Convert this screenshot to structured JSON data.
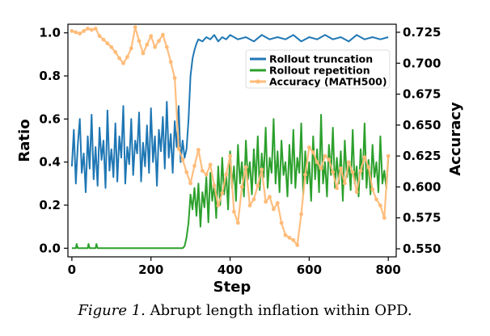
{
  "caption": {
    "figure_label": "Figure 1.",
    "text": "Abrupt length inflation within OPD."
  },
  "chart_data": {
    "type": "line",
    "title": "",
    "xlabel": "Step",
    "ylabel_left": "Ratio",
    "ylabel_right": "Accuracy",
    "xlim": [
      -10,
      820
    ],
    "ylim_left": [
      -0.04,
      1.04
    ],
    "ylim_right": [
      0.5435,
      0.7315
    ],
    "x_ticks": [
      0,
      200,
      400,
      600,
      800
    ],
    "x_tick_labels": [
      "0",
      "200",
      "400",
      "600",
      "800"
    ],
    "y_left_ticks": [
      0.0,
      0.2,
      0.4,
      0.6,
      0.8,
      1.0
    ],
    "y_left_tick_labels": [
      "0.0",
      "0.2",
      "0.4",
      "0.6",
      "0.8",
      "1.0"
    ],
    "y_right_ticks": [
      0.55,
      0.575,
      0.6,
      0.625,
      0.65,
      0.675,
      0.7,
      0.725
    ],
    "y_right_tick_labels": [
      "0.550",
      "0.575",
      "0.600",
      "0.625",
      "0.650",
      "0.675",
      "0.700",
      "0.725"
    ],
    "legend": {
      "placement": "upper-right",
      "entries": [
        "Rollout truncation",
        "Rollout repetition",
        "Accuracy (MATH500)"
      ]
    },
    "series": [
      {
        "name": "Rollout truncation",
        "axis": "left",
        "color": "#1f77b4",
        "x": [
          0,
          5,
          10,
          15,
          20,
          25,
          30,
          35,
          40,
          45,
          50,
          55,
          60,
          65,
          70,
          75,
          80,
          85,
          90,
          95,
          100,
          105,
          110,
          115,
          120,
          125,
          130,
          135,
          140,
          145,
          150,
          155,
          160,
          165,
          170,
          175,
          180,
          185,
          190,
          195,
          200,
          205,
          210,
          215,
          220,
          225,
          230,
          235,
          240,
          245,
          250,
          255,
          260,
          265,
          270,
          275,
          280,
          285,
          290,
          295,
          300,
          305,
          310,
          315,
          320,
          330,
          340,
          350,
          360,
          370,
          380,
          390,
          400,
          420,
          440,
          460,
          480,
          500,
          520,
          540,
          560,
          580,
          600,
          620,
          640,
          660,
          680,
          700,
          720,
          740,
          760,
          780,
          800
        ],
        "values": [
          0.38,
          0.55,
          0.3,
          0.48,
          0.6,
          0.35,
          0.44,
          0.26,
          0.52,
          0.37,
          0.62,
          0.32,
          0.47,
          0.29,
          0.56,
          0.41,
          0.5,
          0.28,
          0.64,
          0.36,
          0.46,
          0.33,
          0.58,
          0.31,
          0.52,
          0.42,
          0.66,
          0.3,
          0.47,
          0.39,
          0.6,
          0.34,
          0.5,
          0.44,
          0.63,
          0.31,
          0.49,
          0.38,
          0.57,
          0.35,
          0.65,
          0.4,
          0.52,
          0.29,
          0.55,
          0.45,
          0.61,
          0.37,
          0.68,
          0.42,
          0.53,
          0.35,
          0.59,
          0.47,
          0.66,
          0.4,
          0.5,
          0.42,
          0.46,
          0.6,
          0.8,
          0.88,
          0.92,
          0.95,
          0.97,
          0.96,
          0.98,
          0.97,
          0.99,
          0.96,
          0.98,
          0.97,
          0.99,
          0.97,
          0.98,
          0.96,
          0.99,
          0.97,
          0.98,
          0.97,
          0.99,
          0.96,
          0.98,
          0.97,
          0.99,
          0.97,
          0.98,
          0.96,
          0.99,
          0.97,
          0.98,
          0.97,
          0.98
        ]
      },
      {
        "name": "Rollout repetition",
        "axis": "left",
        "color": "#2ca02c",
        "x": [
          0,
          5,
          10,
          12,
          15,
          20,
          30,
          40,
          42,
          45,
          50,
          60,
          62,
          65,
          70,
          80,
          100,
          120,
          140,
          160,
          180,
          200,
          220,
          240,
          260,
          270,
          275,
          280,
          285,
          290,
          295,
          300,
          305,
          310,
          315,
          320,
          325,
          330,
          335,
          340,
          345,
          350,
          355,
          360,
          365,
          370,
          375,
          380,
          385,
          390,
          395,
          400,
          405,
          410,
          415,
          420,
          425,
          430,
          435,
          440,
          445,
          450,
          455,
          460,
          465,
          470,
          475,
          480,
          485,
          490,
          495,
          500,
          505,
          510,
          515,
          520,
          525,
          530,
          535,
          540,
          545,
          550,
          555,
          560,
          565,
          570,
          575,
          580,
          585,
          590,
          595,
          600,
          605,
          610,
          615,
          620,
          625,
          630,
          635,
          640,
          645,
          650,
          655,
          660,
          665,
          670,
          675,
          680,
          685,
          690,
          695,
          700,
          705,
          710,
          715,
          720,
          725,
          730,
          735,
          740,
          745,
          750,
          755,
          760,
          765,
          770,
          775,
          780,
          785,
          790,
          795,
          800
        ],
        "values": [
          0.0,
          0.0,
          0.0,
          0.02,
          0.0,
          0.0,
          0.0,
          0.0,
          0.02,
          0.0,
          0.0,
          0.0,
          0.02,
          0.0,
          0.0,
          0.0,
          0.0,
          0.0,
          0.0,
          0.0,
          0.0,
          0.0,
          0.0,
          0.0,
          0.0,
          0.0,
          0.0,
          0.0,
          0.01,
          0.05,
          0.12,
          0.25,
          0.18,
          0.28,
          0.15,
          0.3,
          0.1,
          0.26,
          0.19,
          0.33,
          0.12,
          0.35,
          0.22,
          0.3,
          0.14,
          0.38,
          0.2,
          0.42,
          0.25,
          0.35,
          0.18,
          0.45,
          0.28,
          0.38,
          0.22,
          0.48,
          0.3,
          0.4,
          0.24,
          0.5,
          0.32,
          0.4,
          0.25,
          0.46,
          0.3,
          0.52,
          0.27,
          0.44,
          0.33,
          0.56,
          0.28,
          0.42,
          0.35,
          0.6,
          0.3,
          0.45,
          0.26,
          0.5,
          0.34,
          0.4,
          0.24,
          0.48,
          0.3,
          0.55,
          0.28,
          0.42,
          0.35,
          0.58,
          0.25,
          0.45,
          0.3,
          0.4,
          0.22,
          0.52,
          0.32,
          0.46,
          0.26,
          0.62,
          0.3,
          0.4,
          0.24,
          0.48,
          0.34,
          0.56,
          0.28,
          0.42,
          0.3,
          0.45,
          0.22,
          0.5,
          0.33,
          0.4,
          0.27,
          0.55,
          0.3,
          0.38,
          0.24,
          0.46,
          0.32,
          0.58,
          0.28,
          0.41,
          0.25,
          0.48,
          0.33,
          0.4,
          0.26,
          0.52,
          0.3,
          0.36,
          0.28,
          0.42
        ]
      },
      {
        "name": "Accuracy (MATH500)",
        "axis": "right",
        "color": "#ffbb78",
        "marker": "circle",
        "x": [
          0,
          10,
          20,
          30,
          40,
          50,
          60,
          70,
          80,
          90,
          100,
          110,
          120,
          130,
          140,
          150,
          160,
          170,
          180,
          190,
          200,
          210,
          220,
          230,
          240,
          250,
          260,
          270,
          280,
          290,
          300,
          310,
          320,
          330,
          340,
          350,
          360,
          370,
          380,
          390,
          400,
          410,
          420,
          430,
          440,
          450,
          460,
          470,
          480,
          490,
          500,
          510,
          520,
          530,
          540,
          550,
          560,
          570,
          580,
          590,
          600,
          610,
          620,
          630,
          640,
          650,
          660,
          670,
          680,
          690,
          700,
          710,
          720,
          730,
          740,
          750,
          760,
          770,
          780,
          790,
          800
        ],
        "values": [
          0.726,
          0.725,
          0.724,
          0.726,
          0.728,
          0.727,
          0.728,
          0.722,
          0.719,
          0.716,
          0.713,
          0.709,
          0.704,
          0.7,
          0.705,
          0.712,
          0.729,
          0.718,
          0.708,
          0.715,
          0.722,
          0.713,
          0.718,
          0.723,
          0.713,
          0.701,
          0.688,
          0.631,
          0.622,
          0.612,
          0.603,
          0.617,
          0.63,
          0.613,
          0.61,
          0.618,
          0.601,
          0.585,
          0.595,
          0.61,
          0.625,
          0.58,
          0.571,
          0.6,
          0.616,
          0.585,
          0.59,
          0.601,
          0.614,
          0.588,
          0.592,
          0.582,
          0.587,
          0.571,
          0.561,
          0.559,
          0.557,
          0.553,
          0.578,
          0.61,
          0.632,
          0.628,
          0.62,
          0.615,
          0.625,
          0.622,
          0.612,
          0.599,
          0.615,
          0.603,
          0.62,
          0.612,
          0.596,
          0.613,
          0.624,
          0.616,
          0.598,
          0.59,
          0.585,
          0.575,
          0.625
        ]
      }
    ]
  }
}
